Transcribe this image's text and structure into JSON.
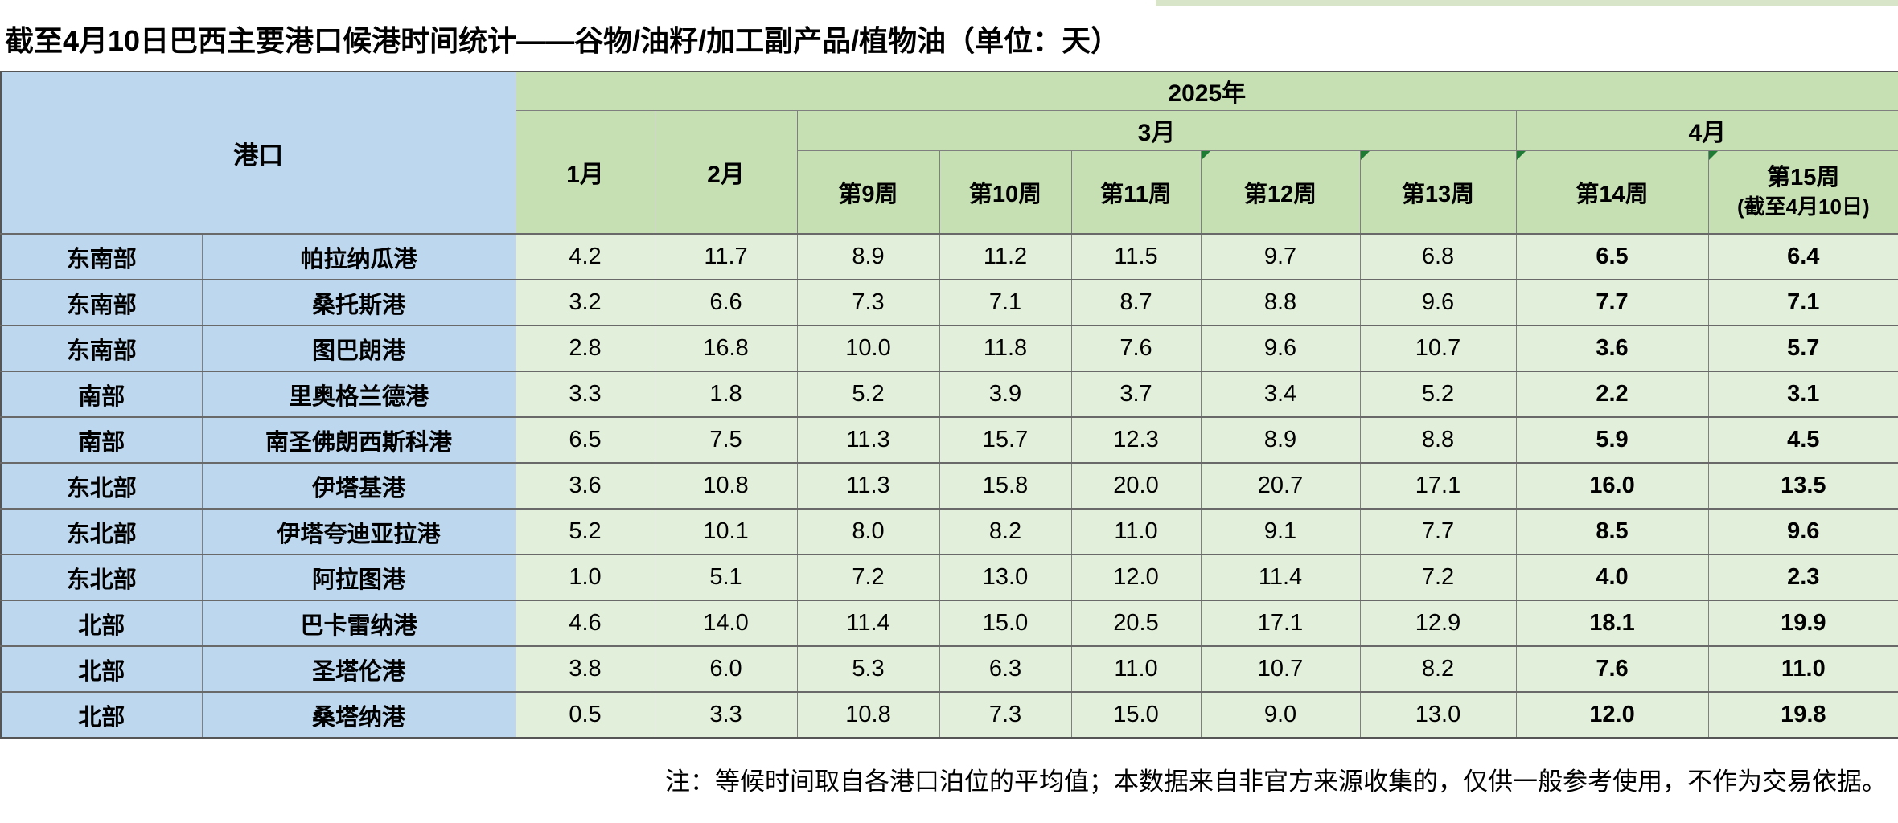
{
  "title": "截至4月10日巴西主要港口候港时间统计——谷物/油籽/加工副产品/植物油（单位：天）",
  "table": {
    "port_column_header": "港口",
    "year_header": "2025年",
    "months": [
      "1月",
      "2月",
      "3月",
      "4月"
    ],
    "weeks": [
      "第9周",
      "第10周",
      "第11周",
      "第12周",
      "第13周",
      "第14周",
      "第15周"
    ],
    "week15_note": "(截至4月10日)",
    "rows": [
      {
        "region": "东南部",
        "port": "帕拉纳瓜港",
        "values": [
          "4.2",
          "11.7",
          "8.9",
          "11.2",
          "11.5",
          "9.7",
          "6.8",
          "6.5",
          "6.4"
        ]
      },
      {
        "region": "东南部",
        "port": "桑托斯港",
        "values": [
          "3.2",
          "6.6",
          "7.3",
          "7.1",
          "8.7",
          "8.8",
          "9.6",
          "7.7",
          "7.1"
        ]
      },
      {
        "region": "东南部",
        "port": "图巴朗港",
        "values": [
          "2.8",
          "16.8",
          "10.0",
          "11.8",
          "7.6",
          "9.6",
          "10.7",
          "3.6",
          "5.7"
        ]
      },
      {
        "region": "南部",
        "port": "里奥格兰德港",
        "values": [
          "3.3",
          "1.8",
          "5.2",
          "3.9",
          "3.7",
          "3.4",
          "5.2",
          "2.2",
          "3.1"
        ]
      },
      {
        "region": "南部",
        "port": "南圣佛朗西斯科港",
        "values": [
          "6.5",
          "7.5",
          "11.3",
          "15.7",
          "12.3",
          "8.9",
          "8.8",
          "5.9",
          "4.5"
        ]
      },
      {
        "region": "东北部",
        "port": "伊塔基港",
        "values": [
          "3.6",
          "10.8",
          "11.3",
          "15.8",
          "20.0",
          "20.7",
          "17.1",
          "16.0",
          "13.5"
        ]
      },
      {
        "region": "东北部",
        "port": "伊塔夸迪亚拉港",
        "values": [
          "5.2",
          "10.1",
          "8.0",
          "8.2",
          "11.0",
          "9.1",
          "7.7",
          "8.5",
          "9.6"
        ]
      },
      {
        "region": "东北部",
        "port": "阿拉图港",
        "values": [
          "1.0",
          "5.1",
          "7.2",
          "13.0",
          "12.0",
          "11.4",
          "7.2",
          "4.0",
          "2.3"
        ]
      },
      {
        "region": "北部",
        "port": "巴卡雷纳港",
        "values": [
          "4.6",
          "14.0",
          "11.4",
          "15.0",
          "20.5",
          "17.1",
          "12.9",
          "18.1",
          "19.9"
        ]
      },
      {
        "region": "北部",
        "port": "圣塔伦港",
        "values": [
          "3.8",
          "6.0",
          "5.3",
          "6.3",
          "11.0",
          "10.7",
          "8.2",
          "7.6",
          "11.0"
        ]
      },
      {
        "region": "北部",
        "port": "桑塔纳港",
        "values": [
          "0.5",
          "3.3",
          "10.8",
          "7.3",
          "15.0",
          "9.0",
          "13.0",
          "12.0",
          "19.8"
        ]
      }
    ]
  },
  "footnote": "注：等候时间取自各港口泊位的平均值；本数据来自非官方来源收集的，仅供一般参考使用，不作为交易依据。",
  "colors": {
    "region_fill": "#BDD7EE",
    "header_fill": "#C6E0B4",
    "data_fill": "#E2EFDA",
    "border_gray": "#7F7F7F",
    "flag_green": "#1E7B34",
    "top_strip_green": "#D8E5C9"
  }
}
